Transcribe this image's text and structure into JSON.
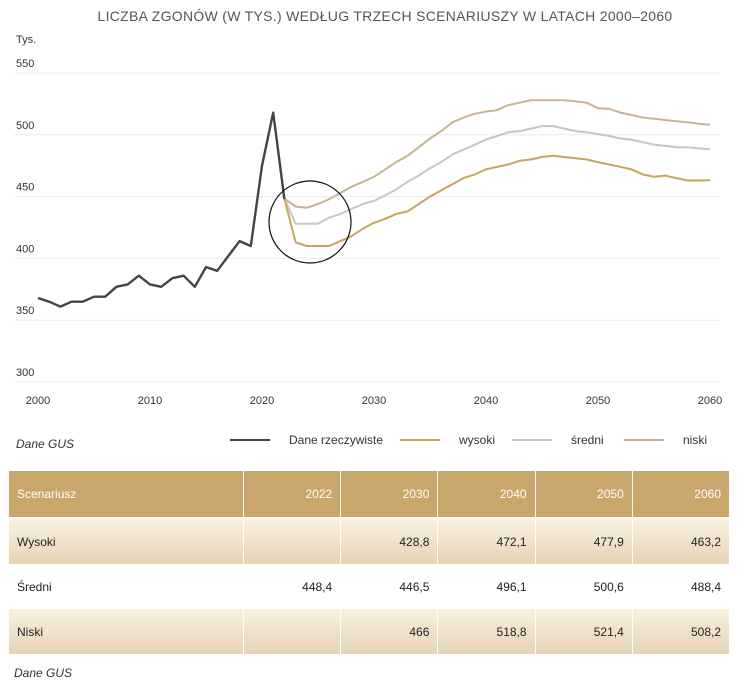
{
  "chart_data": {
    "type": "line",
    "title": "LICZBA ZGONÓW (W TYS.) WEDŁUG TRZECH SCENARIUSZY W LATACH 2000–2060",
    "ylabel": "Tys.",
    "xlabel": "",
    "ylim": [
      300,
      550
    ],
    "xlim": [
      2000,
      2060
    ],
    "yticks": [
      "550",
      "500",
      "450",
      "400",
      "350",
      "300"
    ],
    "ytick_values": [
      550,
      500,
      450,
      400,
      350,
      300
    ],
    "xticks": [
      "2000",
      "2010",
      "2020",
      "2030",
      "2040",
      "2050",
      "2060"
    ],
    "xtick_values": [
      2000,
      2010,
      2020,
      2030,
      2040,
      2050,
      2060
    ],
    "grid": true,
    "source": "Dane GUS",
    "legend": [
      "Dane rzeczywiste",
      "wysoki",
      "średni",
      "niski"
    ],
    "series": [
      {
        "name": "Dane rzeczywiste",
        "color": "#444444",
        "x": [
          2000,
          2001,
          2002,
          2003,
          2004,
          2005,
          2006,
          2007,
          2008,
          2009,
          2010,
          2011,
          2012,
          2013,
          2014,
          2015,
          2016,
          2017,
          2018,
          2019,
          2020,
          2021,
          2022
        ],
        "y": [
          368,
          365,
          361,
          365,
          365,
          369,
          369,
          377,
          379,
          386,
          379,
          377,
          384,
          386,
          377,
          393,
          390,
          402,
          414,
          410,
          475,
          518,
          448
        ]
      },
      {
        "name": "wysoki",
        "color": "#c8a45c",
        "x": [
          2022,
          2023,
          2024,
          2025,
          2026,
          2027,
          2028,
          2029,
          2030,
          2031,
          2032,
          2033,
          2034,
          2035,
          2036,
          2037,
          2038,
          2039,
          2040,
          2041,
          2042,
          2043,
          2044,
          2045,
          2046,
          2047,
          2048,
          2049,
          2050,
          2051,
          2052,
          2053,
          2054,
          2055,
          2056,
          2057,
          2058,
          2059,
          2060
        ],
        "y": [
          448.4,
          413,
          410,
          410,
          410,
          414,
          418,
          424,
          428.8,
          432,
          436,
          438,
          444,
          450,
          455,
          460,
          465,
          468,
          472.1,
          474,
          476,
          479,
          480,
          482,
          483,
          482,
          481,
          480,
          477.9,
          476,
          474,
          472,
          468,
          466,
          467,
          465,
          463,
          463,
          463.2
        ]
      },
      {
        "name": "średni",
        "color": "#c8c6c2",
        "x": [
          2022,
          2023,
          2024,
          2025,
          2026,
          2027,
          2028,
          2029,
          2030,
          2031,
          2032,
          2033,
          2034,
          2035,
          2036,
          2037,
          2038,
          2039,
          2040,
          2041,
          2042,
          2043,
          2044,
          2045,
          2046,
          2047,
          2048,
          2049,
          2050,
          2051,
          2052,
          2053,
          2054,
          2055,
          2056,
          2057,
          2058,
          2059,
          2060
        ],
        "y": [
          448.4,
          428,
          428,
          428,
          433,
          436,
          440,
          444,
          446.5,
          451,
          456,
          462,
          467,
          473,
          478,
          484,
          488,
          492,
          496.1,
          499,
          502,
          503,
          505,
          507,
          507,
          505,
          503,
          502,
          500.6,
          499,
          497,
          496,
          494,
          492,
          491,
          490,
          490,
          489,
          488.4
        ]
      },
      {
        "name": "niski",
        "color": "#c8b494",
        "x": [
          2022,
          2023,
          2024,
          2025,
          2026,
          2027,
          2028,
          2029,
          2030,
          2031,
          2032,
          2033,
          2034,
          2035,
          2036,
          2037,
          2038,
          2039,
          2040,
          2041,
          2042,
          2043,
          2044,
          2045,
          2046,
          2047,
          2048,
          2049,
          2050,
          2051,
          2052,
          2053,
          2054,
          2055,
          2056,
          2057,
          2058,
          2059,
          2060
        ],
        "y": [
          448.4,
          442,
          441,
          444,
          448,
          453,
          458,
          462,
          466,
          472,
          478,
          483,
          490,
          497,
          503,
          510,
          514,
          517,
          518.8,
          520,
          524,
          526,
          528,
          528,
          528,
          528,
          527,
          526,
          521.4,
          521,
          518,
          516,
          514,
          513,
          512,
          511,
          510,
          509,
          508.2
        ]
      }
    ]
  },
  "table": {
    "headers": [
      "Scenariusz",
      "2022",
      "2030",
      "2040",
      "2050",
      "2060"
    ],
    "rows": [
      [
        "Wysoki",
        "",
        "428,8",
        "472,1",
        "477,9",
        "463,2"
      ],
      [
        "Średni",
        "448,4",
        "446,5",
        "496,1",
        "500,6",
        "488,4"
      ],
      [
        "Niski",
        "",
        "466",
        "518,8",
        "521,4",
        "508,2"
      ]
    ],
    "source": "Dane GUS"
  }
}
